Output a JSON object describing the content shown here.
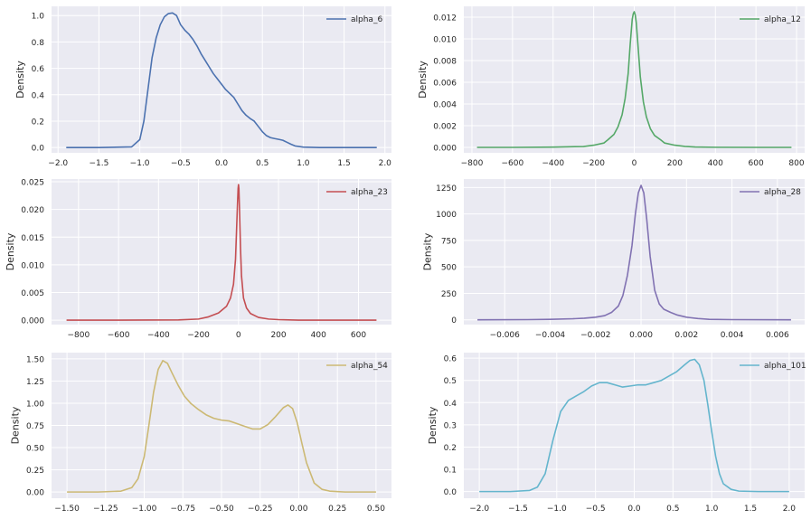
{
  "chart_data": [
    {
      "type": "line",
      "series": [
        {
          "name": "alpha_6",
          "color": "#4c72b0",
          "x": [
            -1.9,
            -1.5,
            -1.1,
            -1.0,
            -0.95,
            -0.9,
            -0.85,
            -0.8,
            -0.75,
            -0.7,
            -0.65,
            -0.6,
            -0.55,
            -0.5,
            -0.45,
            -0.4,
            -0.35,
            -0.3,
            -0.25,
            -0.2,
            -0.15,
            -0.1,
            -0.05,
            0.0,
            0.05,
            0.1,
            0.15,
            0.2,
            0.25,
            0.3,
            0.35,
            0.4,
            0.45,
            0.5,
            0.55,
            0.6,
            0.65,
            0.7,
            0.75,
            0.8,
            0.85,
            0.9,
            1.0,
            1.2,
            1.5,
            1.9
          ],
          "y": [
            0.0,
            0.0,
            0.005,
            0.06,
            0.2,
            0.44,
            0.68,
            0.83,
            0.93,
            0.99,
            1.015,
            1.02,
            1.0,
            0.93,
            0.89,
            0.86,
            0.82,
            0.77,
            0.71,
            0.66,
            0.61,
            0.56,
            0.52,
            0.48,
            0.44,
            0.41,
            0.38,
            0.33,
            0.28,
            0.245,
            0.22,
            0.2,
            0.16,
            0.12,
            0.09,
            0.075,
            0.068,
            0.062,
            0.055,
            0.04,
            0.025,
            0.012,
            0.003,
            0.0,
            0.0,
            0.0
          ]
        }
      ],
      "ylabel": "Density",
      "xlim": [
        -2.08,
        2.08
      ],
      "ylim": [
        -0.04,
        1.07
      ],
      "xticks": [
        -2.0,
        -1.5,
        -1.0,
        -0.5,
        0.0,
        0.5,
        1.0,
        1.5,
        2.0
      ],
      "xtick_labels": [
        "−2.0",
        "−1.5",
        "−1.0",
        "−0.5",
        "0.0",
        "0.5",
        "1.0",
        "1.5",
        "2.0"
      ],
      "yticks": [
        0.0,
        0.2,
        0.4,
        0.6,
        0.8,
        1.0
      ],
      "ytick_labels": [
        "0.0",
        "0.2",
        "0.4",
        "0.6",
        "0.8",
        "1.0"
      ],
      "grid": true,
      "legend": "top-right"
    },
    {
      "type": "line",
      "series": [
        {
          "name": "alpha_12",
          "color": "#55a868",
          "x": [
            -775,
            -600,
            -400,
            -250,
            -200,
            -150,
            -130,
            -100,
            -80,
            -60,
            -45,
            -30,
            -20,
            -10,
            -5,
            0,
            5,
            10,
            20,
            30,
            45,
            60,
            80,
            100,
            130,
            150,
            200,
            250,
            300,
            400,
            600,
            775
          ],
          "y": [
            0.0,
            0.0,
            3e-05,
            8e-05,
            0.0002,
            0.0004,
            0.0007,
            0.0012,
            0.0019,
            0.003,
            0.0045,
            0.0068,
            0.0095,
            0.0118,
            0.0123,
            0.0125,
            0.0122,
            0.0115,
            0.009,
            0.0065,
            0.0042,
            0.0028,
            0.0017,
            0.0011,
            0.0007,
            0.0004,
            0.0002,
            9e-05,
            4e-05,
            1e-05,
            0.0,
            0.0
          ]
        }
      ],
      "ylabel": "Density",
      "xlim": [
        -840,
        840
      ],
      "ylim": [
        -0.0005,
        0.013
      ],
      "xticks": [
        -800,
        -600,
        -400,
        -200,
        0,
        200,
        400,
        600,
        800
      ],
      "xtick_labels": [
        "−800",
        "−600",
        "−400",
        "−200",
        "0",
        "200",
        "400",
        "600",
        "800"
      ],
      "yticks": [
        0.0,
        0.002,
        0.004,
        0.006,
        0.008,
        0.01,
        0.012
      ],
      "ytick_labels": [
        "0.000",
        "0.002",
        "0.004",
        "0.006",
        "0.008",
        "0.010",
        "0.012"
      ],
      "grid": true,
      "legend": "top-right"
    },
    {
      "type": "line",
      "series": [
        {
          "name": "alpha_23",
          "color": "#c44e52",
          "x": [
            -860,
            -600,
            -300,
            -200,
            -150,
            -100,
            -60,
            -40,
            -25,
            -15,
            -10,
            -5,
            -2,
            0,
            2,
            5,
            10,
            15,
            25,
            40,
            60,
            100,
            150,
            200,
            300,
            690
          ],
          "y": [
            0.0,
            0.0,
            5e-05,
            0.0002,
            0.0006,
            0.0013,
            0.0025,
            0.004,
            0.0065,
            0.011,
            0.016,
            0.021,
            0.0238,
            0.0245,
            0.0238,
            0.02,
            0.013,
            0.008,
            0.004,
            0.0022,
            0.0012,
            0.0005,
            0.0002,
            0.0001,
            0.0,
            0.0
          ]
        }
      ],
      "ylabel": "Density",
      "xlim": [
        -935,
        765
      ],
      "ylim": [
        -0.0008,
        0.0255
      ],
      "xticks": [
        -800,
        -600,
        -400,
        -200,
        0,
        200,
        400,
        600
      ],
      "xtick_labels": [
        "−800",
        "−600",
        "−400",
        "−200",
        "0",
        "200",
        "400",
        "600"
      ],
      "yticks": [
        0.0,
        0.005,
        0.01,
        0.015,
        0.02,
        0.025
      ],
      "ytick_labels": [
        "0.000",
        "0.005",
        "0.010",
        "0.015",
        "0.020",
        "0.025"
      ],
      "grid": true,
      "legend": "top-right"
    },
    {
      "type": "line",
      "series": [
        {
          "name": "alpha_28",
          "color": "#8172b2",
          "x": [
            -0.0072,
            -0.005,
            -0.004,
            -0.003,
            -0.0025,
            -0.002,
            -0.0016,
            -0.0013,
            -0.001,
            -0.0008,
            -0.0006,
            -0.0004,
            -0.00025,
            -0.00012,
            0.0,
            0.00012,
            0.00025,
            0.0004,
            0.0006,
            0.0008,
            0.001,
            0.0013,
            0.0016,
            0.002,
            0.0025,
            0.003,
            0.004,
            0.0066
          ],
          "y": [
            0,
            2,
            5,
            10,
            15,
            25,
            40,
            70,
            130,
            230,
            420,
            700,
            1000,
            1200,
            1270,
            1200,
            950,
            600,
            280,
            150,
            100,
            70,
            45,
            25,
            12,
            5,
            2,
            0
          ]
        }
      ],
      "ylabel": "Density",
      "xlim": [
        -0.0078,
        0.0072
      ],
      "ylim": [
        -45,
        1330
      ],
      "xticks": [
        -0.006,
        -0.004,
        -0.002,
        0.0,
        0.002,
        0.004,
        0.006
      ],
      "xtick_labels": [
        "−0.006",
        "−0.004",
        "−0.002",
        "0.000",
        "0.002",
        "0.004",
        "0.006"
      ],
      "yticks": [
        0,
        250,
        500,
        750,
        1000,
        1250
      ],
      "ytick_labels": [
        "0",
        "250",
        "500",
        "750",
        "1000",
        "1250"
      ],
      "grid": true,
      "legend": "top-right"
    },
    {
      "type": "line",
      "series": [
        {
          "name": "alpha_54",
          "color": "#ccb974",
          "x": [
            -1.5,
            -1.3,
            -1.15,
            -1.08,
            -1.04,
            -1.0,
            -0.97,
            -0.94,
            -0.91,
            -0.88,
            -0.85,
            -0.82,
            -0.78,
            -0.74,
            -0.7,
            -0.65,
            -0.6,
            -0.55,
            -0.5,
            -0.45,
            -0.4,
            -0.35,
            -0.3,
            -0.25,
            -0.2,
            -0.15,
            -0.1,
            -0.07,
            -0.04,
            -0.01,
            0.02,
            0.05,
            0.1,
            0.15,
            0.2,
            0.3,
            0.5
          ],
          "y": [
            0.0,
            0.0,
            0.01,
            0.05,
            0.15,
            0.4,
            0.75,
            1.12,
            1.38,
            1.48,
            1.45,
            1.34,
            1.2,
            1.08,
            1.0,
            0.93,
            0.87,
            0.83,
            0.81,
            0.8,
            0.77,
            0.74,
            0.71,
            0.71,
            0.76,
            0.85,
            0.95,
            0.98,
            0.94,
            0.78,
            0.55,
            0.33,
            0.1,
            0.03,
            0.01,
            0.0,
            0.0
          ]
        }
      ],
      "ylabel": "Density",
      "xlim": [
        -1.6,
        0.6
      ],
      "ylim": [
        -0.07,
        1.57
      ],
      "xticks": [
        -1.5,
        -1.25,
        -1.0,
        -0.75,
        -0.5,
        -0.25,
        0.0,
        0.25,
        0.5
      ],
      "xtick_labels": [
        "−1.50",
        "−1.25",
        "−1.00",
        "−0.75",
        "−0.50",
        "−0.25",
        "0.00",
        "0.25",
        "0.50"
      ],
      "yticks": [
        0.0,
        0.25,
        0.5,
        0.75,
        1.0,
        1.25,
        1.5
      ],
      "ytick_labels": [
        "0.00",
        "0.25",
        "0.50",
        "0.75",
        "1.00",
        "1.25",
        "1.50"
      ],
      "grid": true,
      "legend": "top-right"
    },
    {
      "type": "line",
      "series": [
        {
          "name": "alpha_101",
          "color": "#64b5cd",
          "x": [
            -2.0,
            -1.6,
            -1.35,
            -1.25,
            -1.15,
            -1.05,
            -0.95,
            -0.85,
            -0.75,
            -0.65,
            -0.55,
            -0.45,
            -0.35,
            -0.25,
            -0.15,
            -0.05,
            0.05,
            0.15,
            0.25,
            0.35,
            0.45,
            0.55,
            0.65,
            0.72,
            0.78,
            0.84,
            0.9,
            0.95,
            1.0,
            1.05,
            1.1,
            1.15,
            1.25,
            1.35,
            1.6,
            2.0
          ],
          "y": [
            0.0,
            0.0,
            0.005,
            0.02,
            0.08,
            0.23,
            0.36,
            0.41,
            0.43,
            0.45,
            0.475,
            0.49,
            0.49,
            0.48,
            0.47,
            0.475,
            0.48,
            0.48,
            0.49,
            0.5,
            0.52,
            0.54,
            0.57,
            0.59,
            0.595,
            0.57,
            0.5,
            0.39,
            0.27,
            0.16,
            0.08,
            0.035,
            0.01,
            0.002,
            0.0,
            0.0
          ]
        }
      ],
      "ylabel": "Density",
      "xlim": [
        -2.2,
        2.2
      ],
      "ylim": [
        -0.03,
        0.625
      ],
      "xticks": [
        -2.0,
        -1.5,
        -1.0,
        -0.5,
        0.0,
        0.5,
        1.0,
        1.5,
        2.0
      ],
      "xtick_labels": [
        "−2.0",
        "−1.5",
        "−1.0",
        "−0.5",
        "0.0",
        "0.5",
        "1.0",
        "1.5",
        "2.0"
      ],
      "yticks": [
        0.0,
        0.1,
        0.2,
        0.3,
        0.4,
        0.5,
        0.6
      ],
      "ytick_labels": [
        "0.0",
        "0.1",
        "0.2",
        "0.3",
        "0.4",
        "0.5",
        "0.6"
      ],
      "grid": true,
      "legend": "top-right"
    }
  ]
}
